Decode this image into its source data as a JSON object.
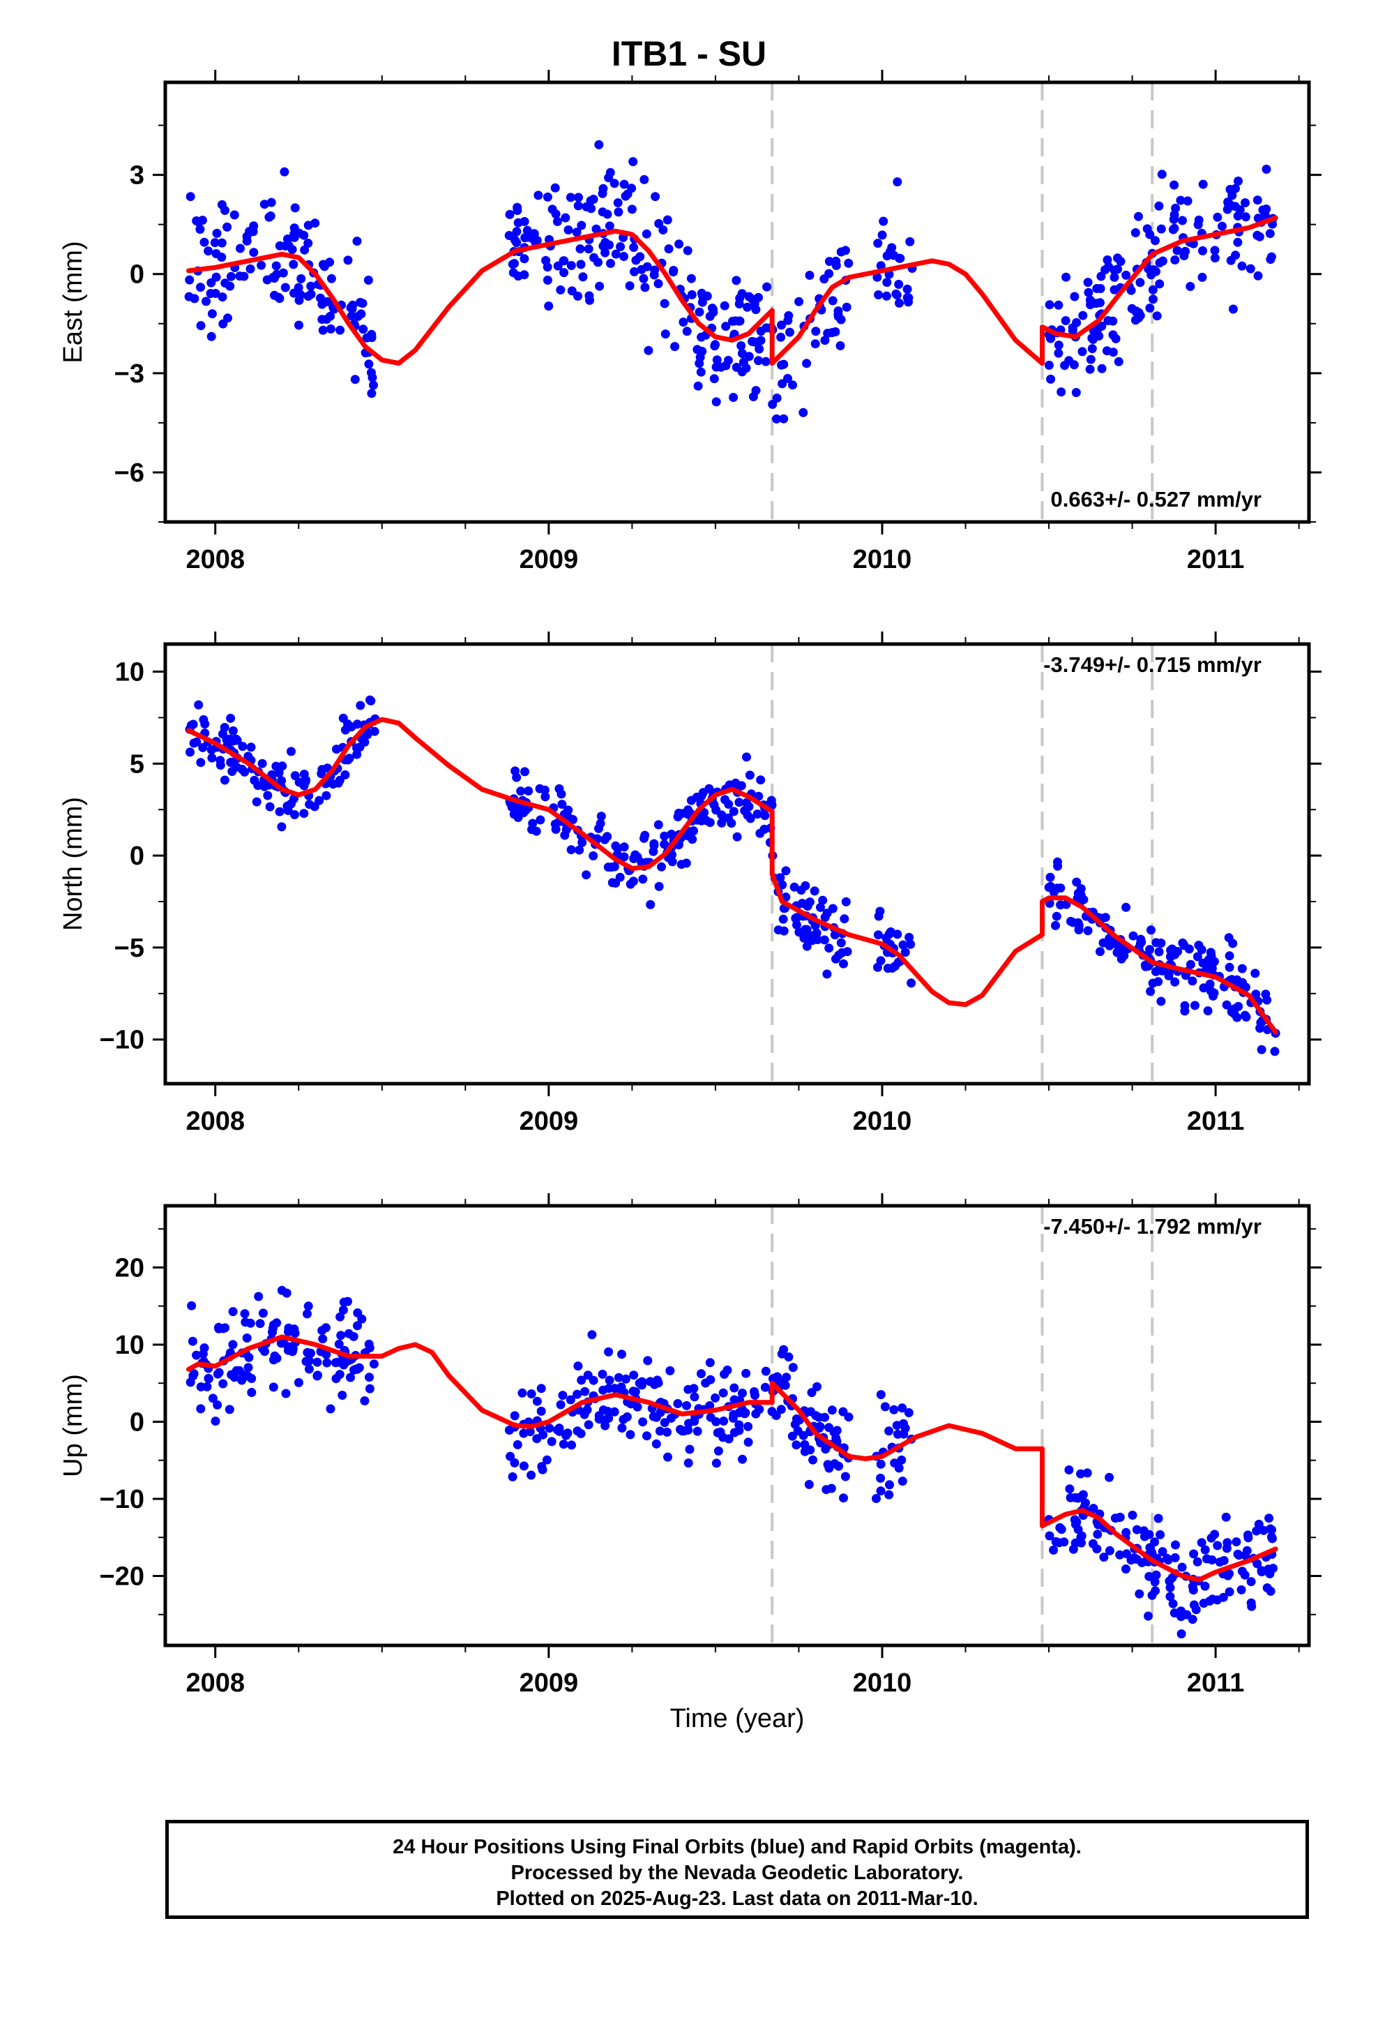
{
  "title": "ITB1 - SU",
  "xlabel": "Time (year)",
  "footer": {
    "line1": "24 Hour Positions Using Final Orbits (blue) and Rapid Orbits (magenta).",
    "line2": "Processed by the Nevada Geodetic Laboratory.",
    "line3": "Plotted on 2025-Aug-23. Last data on 2011-Mar-10."
  },
  "colors": {
    "points": "#0000ff",
    "model": "#ff0000",
    "steps": "#c8c8c8",
    "frame": "#000000"
  },
  "chart_data": [
    {
      "type": "scatter",
      "component": "East",
      "ylabel": "East (mm)",
      "rate_label": "0.663+/- 0.527 mm/yr",
      "rate_position": "bottom-right",
      "xlim": [
        2007.85,
        2011.28
      ],
      "ylim": [
        -7.5,
        5.8
      ],
      "yticks": [
        -6,
        -3,
        0,
        3
      ],
      "xticks": [
        2008,
        2009,
        2010,
        2011
      ],
      "steps": [
        2009.67,
        2010.48,
        2010.81
      ],
      "model": [
        {
          "x": [
            2007.92,
            2008.0,
            2008.1,
            2008.2,
            2008.25,
            2008.3,
            2008.35,
            2008.4,
            2008.45,
            2008.5,
            2008.55,
            2008.6,
            2008.7,
            2008.8,
            2008.9,
            2009.0,
            2009.1,
            2009.2,
            2009.25,
            2009.3,
            2009.35,
            2009.4,
            2009.45,
            2009.5,
            2009.55,
            2009.6,
            2009.67
          ],
          "y": [
            0.1,
            0.2,
            0.4,
            0.6,
            0.5,
            0.0,
            -0.7,
            -1.5,
            -2.2,
            -2.6,
            -2.7,
            -2.3,
            -1.0,
            0.1,
            0.7,
            0.9,
            1.1,
            1.3,
            1.2,
            0.7,
            0.0,
            -0.8,
            -1.5,
            -1.9,
            -2.0,
            -1.8,
            -1.1
          ]
        },
        {
          "x": [
            2009.67,
            2009.75,
            2009.8,
            2009.85,
            2009.9,
            2010.0,
            2010.1,
            2010.15,
            2010.2,
            2010.25,
            2010.3,
            2010.35,
            2010.4,
            2010.48
          ],
          "y": [
            -2.7,
            -1.9,
            -1.1,
            -0.4,
            -0.1,
            0.1,
            0.3,
            0.4,
            0.3,
            0.0,
            -0.6,
            -1.3,
            -2.0,
            -2.7
          ]
        },
        {
          "x": [
            2010.48,
            2010.52,
            2010.58,
            2010.65,
            2010.72,
            2010.81,
            2010.9,
            2011.0,
            2011.1,
            2011.18
          ],
          "y": [
            -1.6,
            -1.8,
            -1.9,
            -1.4,
            -0.5,
            0.6,
            1.0,
            1.2,
            1.4,
            1.7
          ]
        }
      ]
    },
    {
      "type": "scatter",
      "component": "North",
      "ylabel": "North (mm)",
      "rate_label": "-3.749+/- 0.715 mm/yr",
      "rate_position": "top-right",
      "xlim": [
        2007.85,
        2011.28
      ],
      "ylim": [
        -12.4,
        11.5
      ],
      "yticks": [
        -10,
        -5,
        0,
        5,
        10
      ],
      "xticks": [
        2008,
        2009,
        2010,
        2011
      ],
      "steps": [
        2009.67,
        2010.48,
        2010.81
      ],
      "model": [
        {
          "x": [
            2007.92,
            2008.0,
            2008.1,
            2008.2,
            2008.25,
            2008.3,
            2008.35,
            2008.4,
            2008.45,
            2008.5,
            2008.55,
            2008.6,
            2008.7,
            2008.8,
            2008.9,
            2009.0,
            2009.1,
            2009.2,
            2009.25,
            2009.3,
            2009.35,
            2009.4,
            2009.45,
            2009.5,
            2009.55,
            2009.6,
            2009.67
          ],
          "y": [
            6.8,
            6.1,
            5.0,
            3.6,
            3.3,
            3.6,
            4.6,
            6.0,
            7.0,
            7.4,
            7.2,
            6.4,
            4.9,
            3.6,
            3.0,
            2.5,
            1.2,
            -0.2,
            -0.7,
            -0.6,
            0.1,
            1.3,
            2.5,
            3.3,
            3.6,
            3.2,
            2.4
          ]
        },
        {
          "x": [
            2009.67,
            2009.7,
            2009.8,
            2009.9,
            2010.0,
            2010.05,
            2010.1,
            2010.15,
            2010.2,
            2010.25,
            2010.3,
            2010.35,
            2010.4,
            2010.48
          ],
          "y": [
            -1.0,
            -2.5,
            -3.5,
            -4.3,
            -4.8,
            -5.4,
            -6.4,
            -7.4,
            -8.0,
            -8.1,
            -7.6,
            -6.4,
            -5.2,
            -4.3
          ]
        },
        {
          "x": [
            2010.48,
            2010.5,
            2010.55,
            2010.6,
            2010.7,
            2010.81,
            2010.9,
            2011.0,
            2011.1,
            2011.18
          ],
          "y": [
            -2.5,
            -2.3,
            -2.3,
            -2.8,
            -4.4,
            -5.8,
            -6.2,
            -6.6,
            -7.6,
            -9.6
          ]
        }
      ]
    },
    {
      "type": "scatter",
      "component": "Up",
      "ylabel": "Up (mm)",
      "rate_label": "-7.450+/- 1.792 mm/yr",
      "rate_position": "top-right",
      "xlim": [
        2007.85,
        2011.28
      ],
      "ylim": [
        -29,
        28
      ],
      "yticks": [
        -20,
        -10,
        0,
        10,
        20
      ],
      "xticks": [
        2008,
        2009,
        2010,
        2011
      ],
      "steps": [
        2009.67,
        2010.48,
        2010.81
      ],
      "model": [
        {
          "x": [
            2007.92,
            2007.95,
            2008.0,
            2008.1,
            2008.2,
            2008.3,
            2008.4,
            2008.5,
            2008.55,
            2008.6,
            2008.65,
            2008.7,
            2008.8,
            2008.9,
            2008.95,
            2009.0,
            2009.1,
            2009.2,
            2009.3,
            2009.4,
            2009.5,
            2009.6,
            2009.67
          ],
          "y": [
            6.8,
            7.5,
            7.2,
            9.5,
            11.0,
            10.0,
            8.5,
            8.5,
            9.5,
            10.0,
            9.0,
            6.0,
            1.5,
            -0.5,
            -0.6,
            0.0,
            2.5,
            3.5,
            2.5,
            1.0,
            1.5,
            2.5,
            2.5
          ]
        },
        {
          "x": [
            2009.67,
            2009.75,
            2009.8,
            2009.9,
            2009.95,
            2010.0,
            2010.1,
            2010.2,
            2010.3,
            2010.4,
            2010.48
          ],
          "y": [
            5.0,
            1.5,
            -1.5,
            -4.5,
            -4.8,
            -4.5,
            -2.0,
            -0.5,
            -1.5,
            -3.5,
            -3.5
          ]
        },
        {
          "x": [
            2010.48,
            2010.55,
            2010.6,
            2010.65,
            2010.7,
            2010.81,
            2010.9,
            2010.95,
            2011.0,
            2011.1,
            2011.18
          ],
          "y": [
            -13.5,
            -12.0,
            -11.5,
            -12.5,
            -14.5,
            -18.0,
            -20.0,
            -20.5,
            -19.5,
            -18.0,
            -16.5
          ]
        }
      ]
    }
  ]
}
